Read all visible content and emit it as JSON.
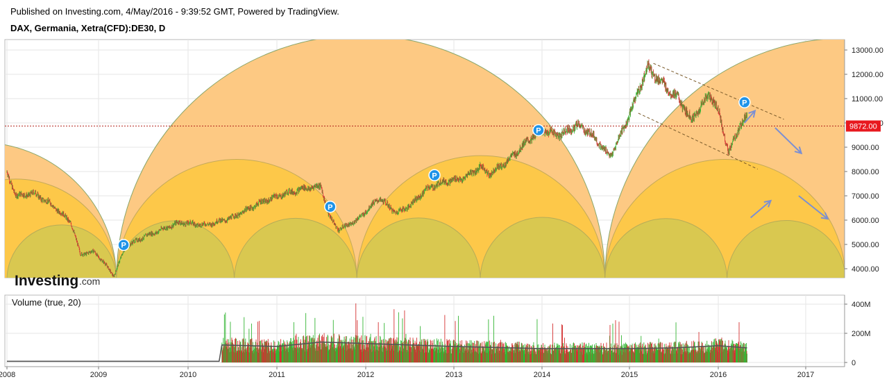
{
  "header": {
    "published": "Published on Investing.com, 4/May/2016 - 9:39:52 GMT, Powered by TradingView.",
    "symbol": "DAX, Germania, Xetra(CFD):DE30, D"
  },
  "logo": {
    "main": "Investing",
    "suffix": ".com"
  },
  "volume_label": "Volume (true, 20)",
  "price_marker": {
    "value": 9872.0,
    "label": "9872.00",
    "color": "#e8191f"
  },
  "colors": {
    "arc_outer": "#fdc983",
    "arc_mid": "#fdc849",
    "arc_inner": "#d9c850",
    "up": "#33b533",
    "down": "#d43030",
    "arrow": "#7b8fd3",
    "marker": "#1f93e8"
  },
  "chart_data": [
    {
      "type": "line",
      "subtype": "candlestick",
      "ylim": [
        3550,
        13400
      ],
      "y_ticks": [
        "13000.00",
        "12000.00",
        "11000.00",
        "10000.00",
        "9000.00",
        "8000.00",
        "7000.00",
        "6000.00",
        "5000.00",
        "4000.00"
      ],
      "x_ticks": [
        "2008",
        "2009",
        "2010",
        "2011",
        "2012",
        "2013",
        "2014",
        "2015",
        "2016",
        "2017"
      ],
      "xlim": [
        2008.0,
        2017.5
      ],
      "series": [
        {
          "x": [
            2008.0,
            2008.1,
            2008.3,
            2008.5,
            2008.7,
            2008.8,
            2008.95,
            2009.05,
            2009.17,
            2009.3,
            2009.5,
            2009.7,
            2009.9,
            2010.2,
            2010.5,
            2010.8,
            2011.1,
            2011.3,
            2011.5,
            2011.58,
            2011.7,
            2011.9,
            2012.15,
            2012.35,
            2012.5,
            2012.7,
            2012.9,
            2013.1,
            2013.3,
            2013.4,
            2013.6,
            2013.85,
            2014.0,
            2014.2,
            2014.4,
            2014.55,
            2014.78,
            2014.95,
            2015.05,
            2015.2,
            2015.4,
            2015.55,
            2015.7,
            2015.9,
            2016.0,
            2016.12,
            2016.25,
            2016.33
          ],
          "values": [
            7950,
            7000,
            7100,
            6600,
            5900,
            4600,
            4700,
            4300,
            3700,
            4900,
            5300,
            5600,
            5900,
            5800,
            6100,
            6700,
            7100,
            7300,
            7400,
            6200,
            5600,
            6000,
            6900,
            6300,
            6600,
            7300,
            7600,
            7700,
            8200,
            7900,
            8400,
            9300,
            9700,
            9500,
            9900,
            9600,
            8600,
            9900,
            10800,
            12300,
            11500,
            11000,
            10100,
            11200,
            10500,
            8750,
            9900,
            10300
          ]
        }
      ],
      "markers": [
        {
          "x": 2009.28,
          "y": 4980,
          "label": "P"
        },
        {
          "x": 2011.6,
          "y": 6550,
          "label": "P"
        },
        {
          "x": 2012.78,
          "y": 7850,
          "label": "P"
        },
        {
          "x": 2013.96,
          "y": 9700,
          "label": "P"
        },
        {
          "x": 2016.3,
          "y": 10850,
          "label": "P"
        }
      ],
      "channel": {
        "upper": [
          [
            2015.27,
            12450
          ],
          [
            2016.75,
            10150
          ]
        ],
        "lower": [
          [
            2015.1,
            10400
          ],
          [
            2016.45,
            8100
          ]
        ]
      },
      "arrows": [
        [
          [
            2016.3,
            10000
          ],
          [
            2016.42,
            10500
          ]
        ],
        [
          [
            2016.65,
            9800
          ],
          [
            2016.95,
            8750
          ]
        ],
        [
          [
            2016.37,
            6100
          ],
          [
            2016.6,
            6800
          ]
        ],
        [
          [
            2016.92,
            7000
          ],
          [
            2017.25,
            6050
          ]
        ]
      ],
      "half_cycles": [
        [
          2008.0,
          2009.2
        ],
        [
          2009.2,
          2010.52
        ],
        [
          2010.52,
          2011.9
        ],
        [
          2011.9,
          2013.3
        ],
        [
          2013.3,
          2014.72
        ],
        [
          2014.72,
          2016.1
        ],
        [
          2016.1,
          2017.45
        ]
      ],
      "mid_cycles": [
        [
          2007.0,
          2009.2
        ],
        [
          2009.2,
          2011.9
        ],
        [
          2011.9,
          2014.72
        ],
        [
          2014.72,
          2017.45
        ]
      ],
      "big_cycles": [
        [
          2006.2,
          2009.2
        ],
        [
          2009.2,
          2014.72
        ],
        [
          2014.72,
          2020.2
        ]
      ]
    },
    {
      "type": "bar",
      "title": "Volume (true, 20)",
      "ylim": [
        0,
        470
      ],
      "y_ticks": [
        "400M",
        "200M",
        "0"
      ],
      "x": [
        2008.0,
        2009.0,
        2010.0,
        2010.35,
        2010.38,
        2011.0,
        2011.5,
        2012.0,
        2013.0,
        2014.0,
        2015.0,
        2015.5,
        2016.0,
        2016.33
      ],
      "values": [
        8,
        8,
        8,
        8,
        120,
        110,
        140,
        130,
        110,
        95,
        95,
        100,
        115,
        100
      ]
    }
  ]
}
